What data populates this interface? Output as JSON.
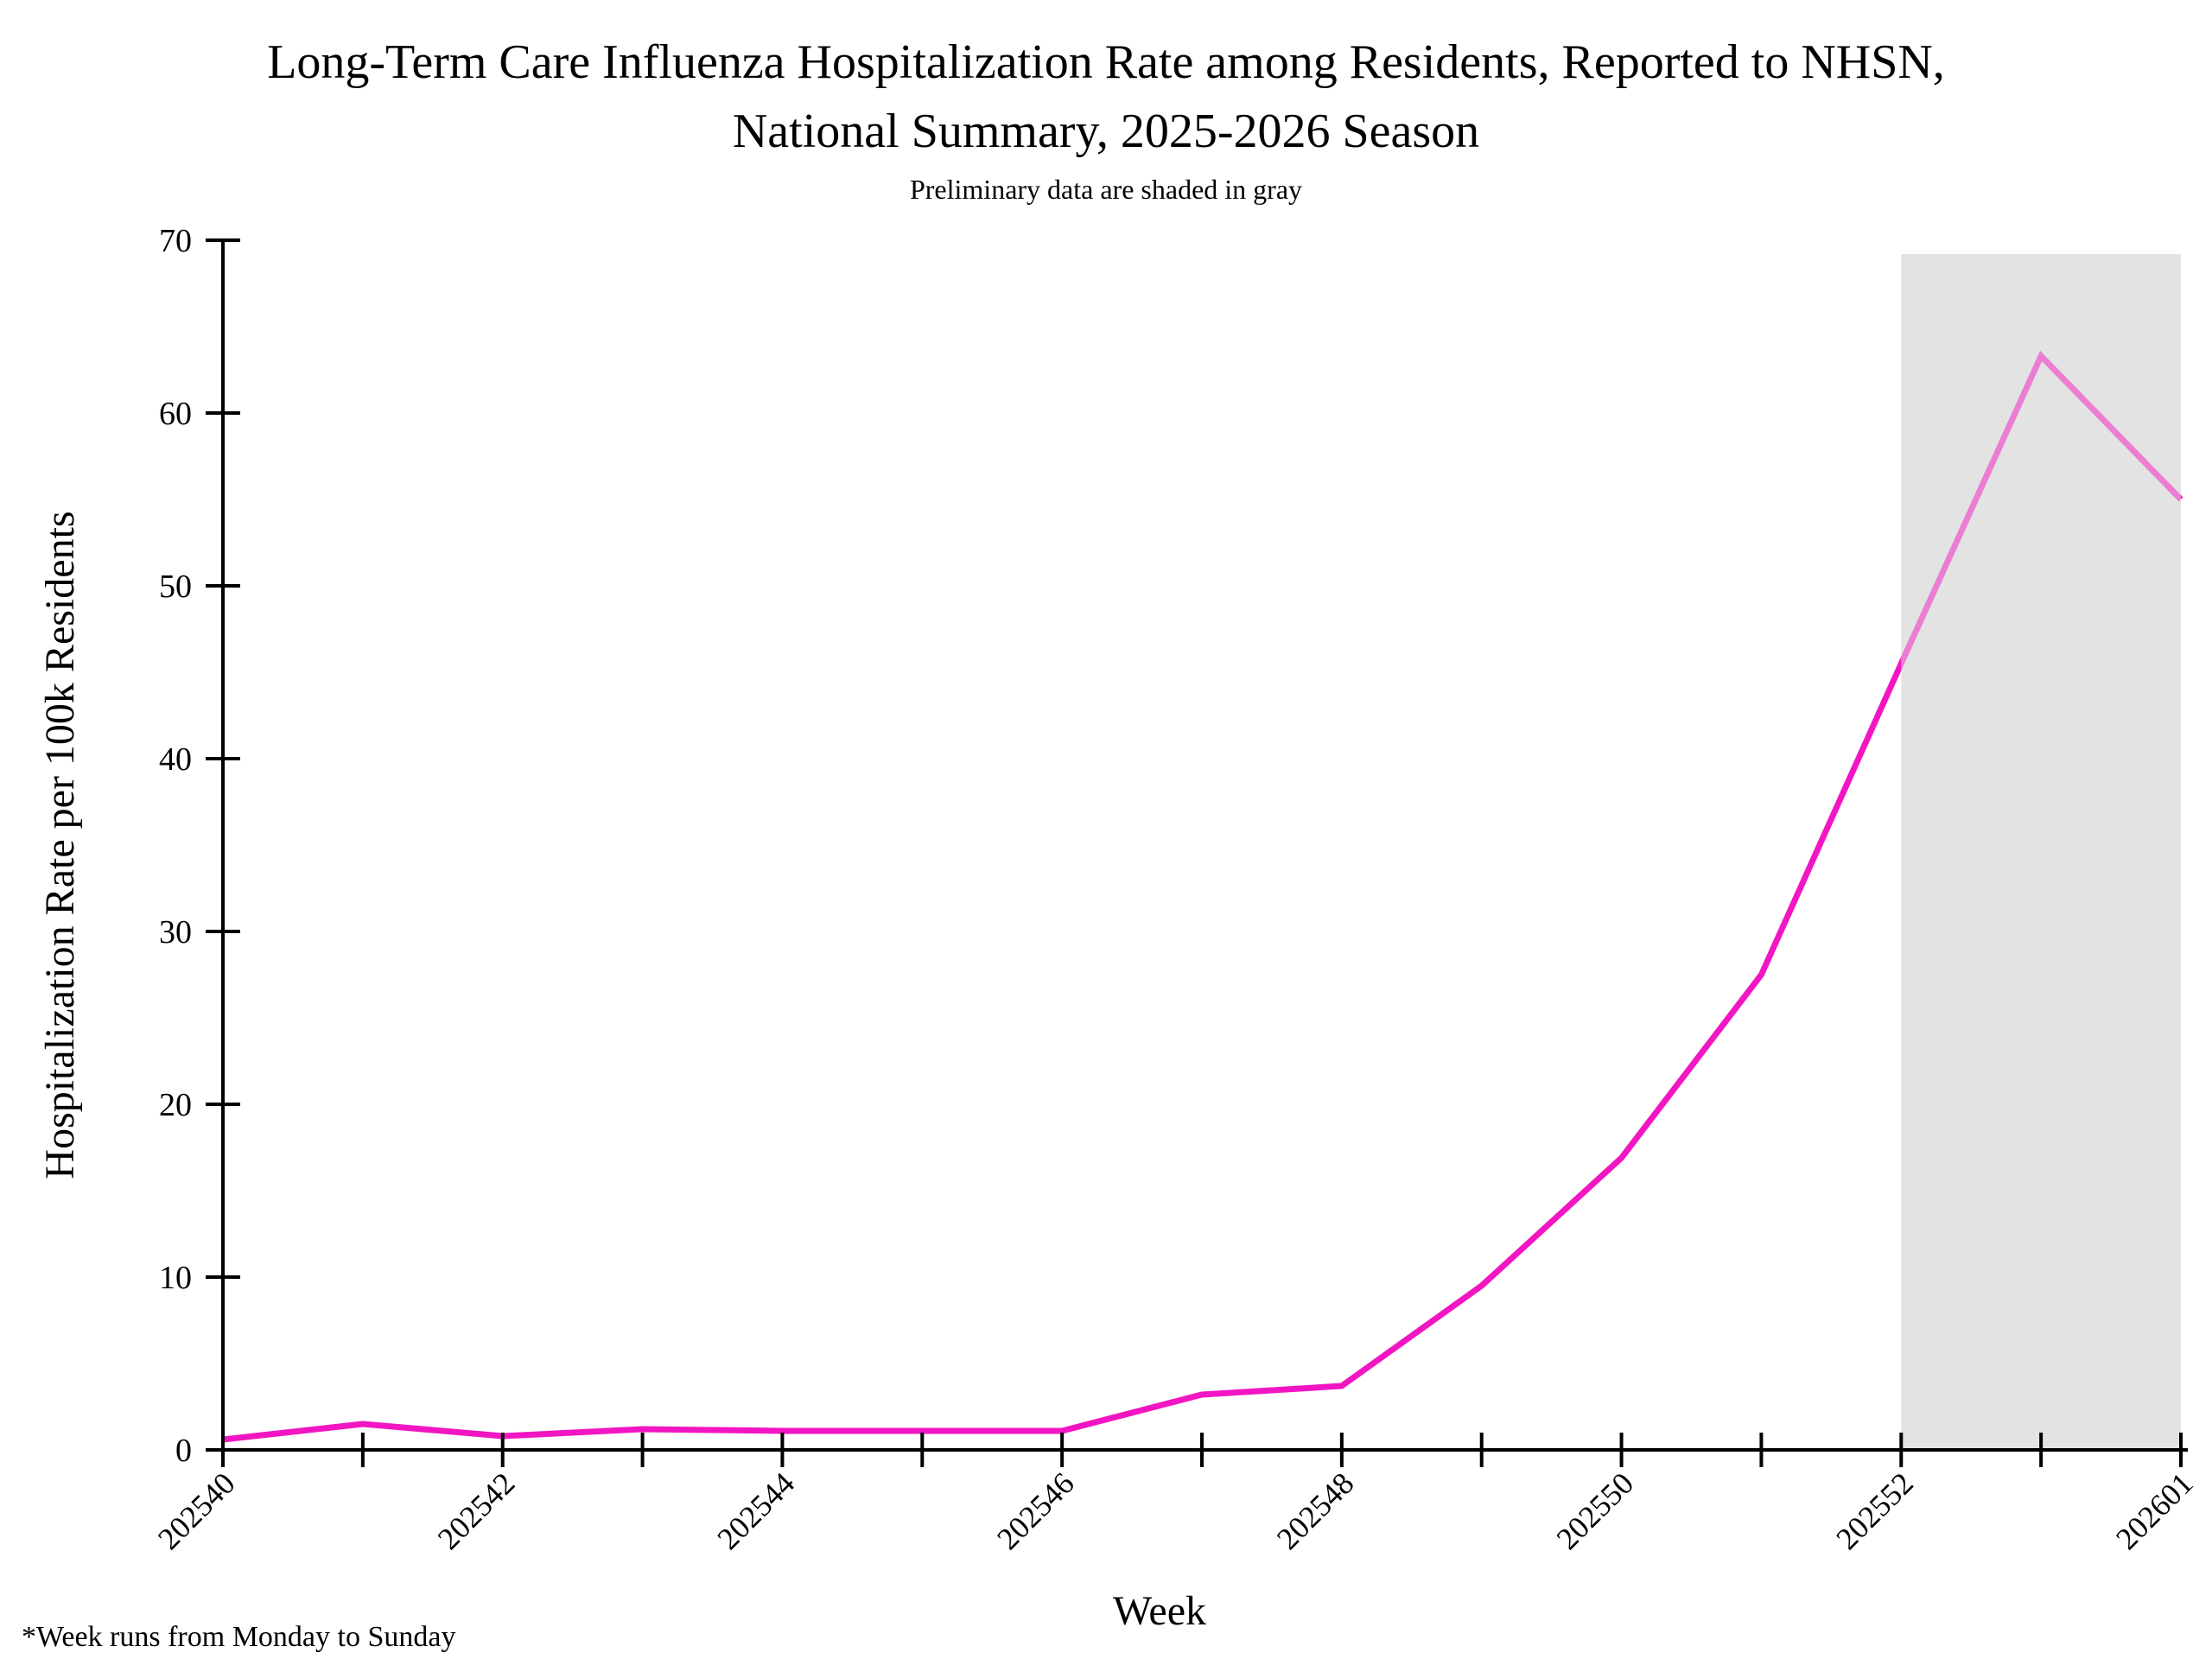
{
  "page": {
    "background": "#FFFFFF"
  },
  "chart_data": {
    "type": "line",
    "title_line1": "Long-Term Care Influenza Hospitalization Rate among Residents, Reported to NHSN,",
    "title_line2": "National Summary, 2025-2026 Season",
    "subtitle": "Preliminary data are shaded in gray",
    "xlabel": "Week",
    "ylabel": "Hospitalization Rate per 100k Residents",
    "footnote": "*Week runs from Monday to Sunday",
    "x": [
      "202540",
      "202541",
      "202542",
      "202543",
      "202544",
      "202545",
      "202546",
      "202547",
      "202548",
      "202549",
      "202550",
      "202551",
      "202552",
      "202553",
      "202601"
    ],
    "x_tick_labels": [
      "202540",
      "202542",
      "202544",
      "202546",
      "202548",
      "202550",
      "202552",
      "202601"
    ],
    "series": [
      {
        "name": "Influenza hospitalization rate per 100k residents",
        "values": [
          0.6,
          1.5,
          0.8,
          1.2,
          1.1,
          1.1,
          1.1,
          3.2,
          3.7,
          9.5,
          16.9,
          27.5,
          45.5,
          63.3,
          55.0
        ]
      }
    ],
    "ylim": [
      0,
      70
    ],
    "y_ticks": [
      0,
      10,
      20,
      30,
      40,
      50,
      60,
      70
    ],
    "grid": false,
    "legend_position": "none",
    "preliminary_region": {
      "from": "202552",
      "to": "202601"
    },
    "colors": {
      "line": "#F216C2",
      "shade": "#E3E3E3",
      "axis": "#000000"
    }
  }
}
